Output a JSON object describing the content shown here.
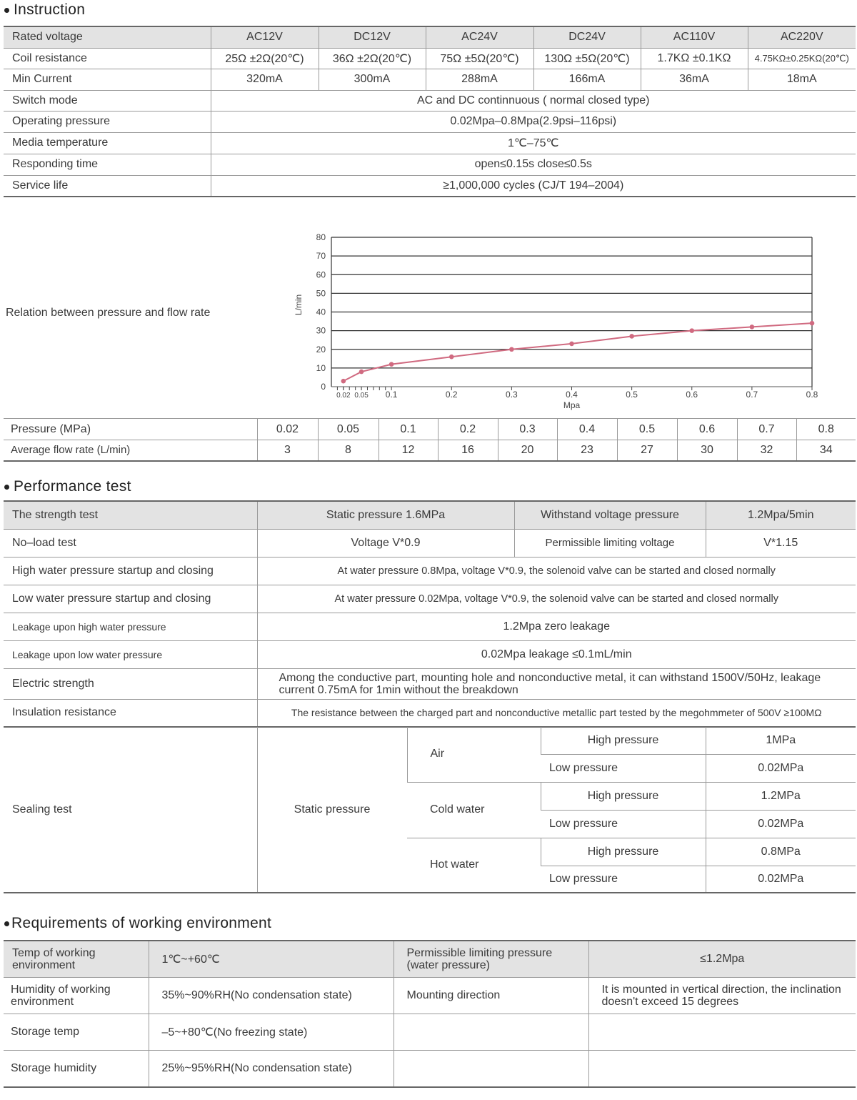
{
  "instruction": {
    "title": "Instruction",
    "rated_voltage_label": "Rated voltage",
    "voltages": [
      "AC12V",
      "DC12V",
      "AC24V",
      "DC24V",
      "AC110V",
      "AC220V"
    ],
    "coil_label": "Coil resistance",
    "coil": [
      "25Ω ±2Ω(20℃)",
      "36Ω ±2Ω(20℃)",
      "75Ω ±5Ω(20℃)",
      "130Ω ±5Ω(20℃)",
      "1.7KΩ ±0.1KΩ",
      "4.75KΩ±0.25KΩ(20℃)"
    ],
    "current_label": "Min Current",
    "current": [
      "320mA",
      "300mA",
      "288mA",
      "166mA",
      "36mA",
      "18mA"
    ],
    "rows": [
      {
        "label": "Switch mode",
        "value": "AC and DC continnuous ( normal closed type)"
      },
      {
        "label": "Operating pressure",
        "value": "0.02Mpa–0.8Mpa(2.9psi–116psi)"
      },
      {
        "label": "Media temperature",
        "value": "1℃–75℃"
      },
      {
        "label": "Responding time",
        "value": "open≤0.15s  close≤0.5s"
      },
      {
        "label": "Service life",
        "value": "≥1,000,000 cycles (CJ/T 194–2004)"
      }
    ]
  },
  "flow": {
    "label": "Relation between pressure and flow rate",
    "pressure_label": "Pressure (MPa)",
    "flow_label": "Average flow rate (L/min)",
    "pressures": [
      "0.02",
      "0.05",
      "0.1",
      "0.2",
      "0.3",
      "0.4",
      "0.5",
      "0.6",
      "0.7",
      "0.8"
    ],
    "flows": [
      "3",
      "8",
      "12",
      "16",
      "20",
      "23",
      "27",
      "30",
      "32",
      "34"
    ]
  },
  "chart_data": {
    "type": "line",
    "xlabel": "Mpa",
    "ylabel": "L/min",
    "x": [
      0.02,
      0.05,
      0.1,
      0.2,
      0.3,
      0.4,
      0.5,
      0.6,
      0.7,
      0.8
    ],
    "values": [
      3,
      8,
      12,
      16,
      20,
      23,
      27,
      30,
      32,
      34
    ],
    "xlim": [
      0,
      0.8
    ],
    "ylim": [
      0,
      80
    ],
    "xticks": [
      "0.02",
      "0.05",
      "0.1",
      "0.2",
      "0.3",
      "0.4",
      "0.5",
      "0.6",
      "0.7",
      "0.8"
    ],
    "yticks": [
      "0",
      "10",
      "20",
      "30",
      "40",
      "50",
      "60",
      "70",
      "80"
    ],
    "grid": true,
    "line_color": "#d06a80"
  },
  "performance": {
    "title": "Performance test",
    "strength": {
      "label": "The strength test",
      "value": "Static pressure 1.6MPa",
      "label2": "Withstand voltage pressure",
      "value2": "1.2Mpa/5min"
    },
    "noload": {
      "label": "No–load test",
      "value": "Voltage V*0.9",
      "label2": "Permissible limiting voltage",
      "value2": "V*1.15"
    },
    "rows": [
      {
        "label": "High water pressure startup and closing",
        "value": "At water pressure 0.8Mpa, voltage V*0.9, the solenoid valve can be started and closed normally"
      },
      {
        "label": "Low water pressure startup and closing",
        "value": "At water pressure 0.02Mpa, voltage V*0.9, the solenoid valve can be started and closed normally"
      },
      {
        "label": "Leakage upon high water pressure",
        "value": "1.2Mpa zero leakage"
      },
      {
        "label": "Leakage upon low water pressure",
        "value": "0.02Mpa leakage ≤0.1mL/min"
      },
      {
        "label": "Electric strength",
        "value": "Among the conductive part, mounting hole and nonconductive metal, it can withstand 1500V/50Hz, leakage current 0.75mA for 1min without the breakdown"
      },
      {
        "label": "Insulation resistance",
        "value": "The resistance between the charged part and nonconductive metallic part tested by the megohmmeter of 500V ≥100MΩ"
      }
    ],
    "sealing": {
      "label": "Sealing test",
      "type": "Static pressure",
      "media": [
        {
          "name": "Air",
          "high_label": "High pressure",
          "high": "1MPa",
          "low_label": "Low pressure",
          "low": "0.02MPa"
        },
        {
          "name": "Cold water",
          "high_label": "High pressure",
          "high": "1.2MPa",
          "low_label": "Low pressure",
          "low": "0.02MPa"
        },
        {
          "name": "Hot water",
          "high_label": "High pressure",
          "high": "0.8MPa",
          "low_label": "Low pressure",
          "low": "0.02MPa"
        }
      ]
    }
  },
  "environment": {
    "title": "Requirements of working environment",
    "rows": [
      {
        "label": "Temp of working environment",
        "value": "1℃~+60℃",
        "label2": "Permissible limiting pressure (water pressure)",
        "value2": "≤1.2Mpa"
      },
      {
        "label": "Humidity of working environment",
        "value": "35%~90%RH(No condensation state)",
        "label2": "Mounting direction",
        "value2": "It is mounted in vertical direction, the inclination doesn't exceed 15 degrees"
      },
      {
        "label": "Storage temp",
        "value": "–5~+80℃(No freezing state)",
        "label2": "",
        "value2": ""
      },
      {
        "label": "Storage humidity",
        "value": "25%~95%RH(No condensation state)",
        "label2": "",
        "value2": ""
      }
    ]
  }
}
